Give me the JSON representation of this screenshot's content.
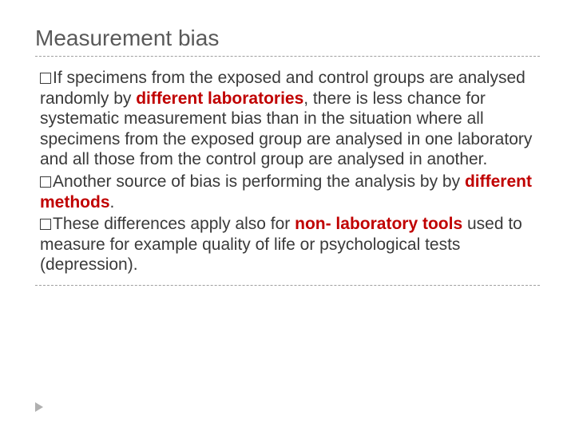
{
  "slide": {
    "title": "Measurement bias",
    "title_color": "#595959",
    "title_fontsize": 28,
    "body_fontsize": 21,
    "body_color": "#3a3a3a",
    "emphasis_color": "#c00000",
    "divider_color": "#a0a0a0",
    "background_color": "#ffffff",
    "bullets": [
      {
        "runs": [
          {
            "text": "If specimens from the exposed and control groups are analysed randomly by ",
            "bold": false,
            "color": "#3a3a3a"
          },
          {
            "text": "different laboratories",
            "bold": true,
            "color": "#c00000"
          },
          {
            "text": ", there is less chance for systematic measurement bias than in the situation where all specimens from the exposed group are analysed in one laboratory and all those from the control group are analysed in another.",
            "bold": false,
            "color": "#3a3a3a"
          }
        ]
      },
      {
        "runs": [
          {
            "text": "Another source of bias is performing the analysis by by ",
            "bold": false,
            "color": "#3a3a3a"
          },
          {
            "text": "different methods",
            "bold": true,
            "color": "#c00000"
          },
          {
            "text": ".",
            "bold": false,
            "color": "#3a3a3a"
          }
        ]
      },
      {
        "runs": [
          {
            "text": "These differences apply also for ",
            "bold": false,
            "color": "#3a3a3a"
          },
          {
            "text": "non- laboratory tools",
            "bold": true,
            "color": "#c00000"
          },
          {
            "text": " used to measure for example quality of life or psychological tests (depression).",
            "bold": false,
            "color": "#3a3a3a"
          }
        ]
      }
    ]
  }
}
